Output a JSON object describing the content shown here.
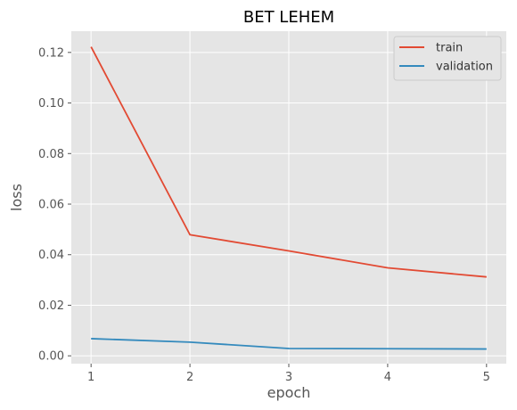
{
  "chart_data": {
    "type": "line",
    "title": "BET LEHEM",
    "xlabel": "epoch",
    "ylabel": "loss",
    "x": [
      1,
      2,
      3,
      4,
      5
    ],
    "xlim": [
      0.8,
      5.2
    ],
    "ylim": [
      -0.0031,
      0.1284
    ],
    "xticks": [
      1,
      2,
      3,
      4,
      5
    ],
    "yticks": [
      0.0,
      0.02,
      0.04,
      0.06,
      0.08,
      0.1,
      0.12
    ],
    "ytick_labels": [
      "0.00",
      "0.02",
      "0.04",
      "0.06",
      "0.08",
      "0.10",
      "0.12"
    ],
    "grid": true,
    "legend_position": "top-right",
    "series": [
      {
        "name": "train",
        "color": "#E24A33",
        "values": [
          0.1222,
          0.0479,
          0.0415,
          0.0348,
          0.0312
        ]
      },
      {
        "name": "validation",
        "color": "#348ABD",
        "values": [
          0.0068,
          0.0054,
          0.0029,
          0.0028,
          0.0027
        ]
      }
    ],
    "style": {
      "plot_bg": "#E5E5E5",
      "grid_color": "#ffffff"
    }
  }
}
